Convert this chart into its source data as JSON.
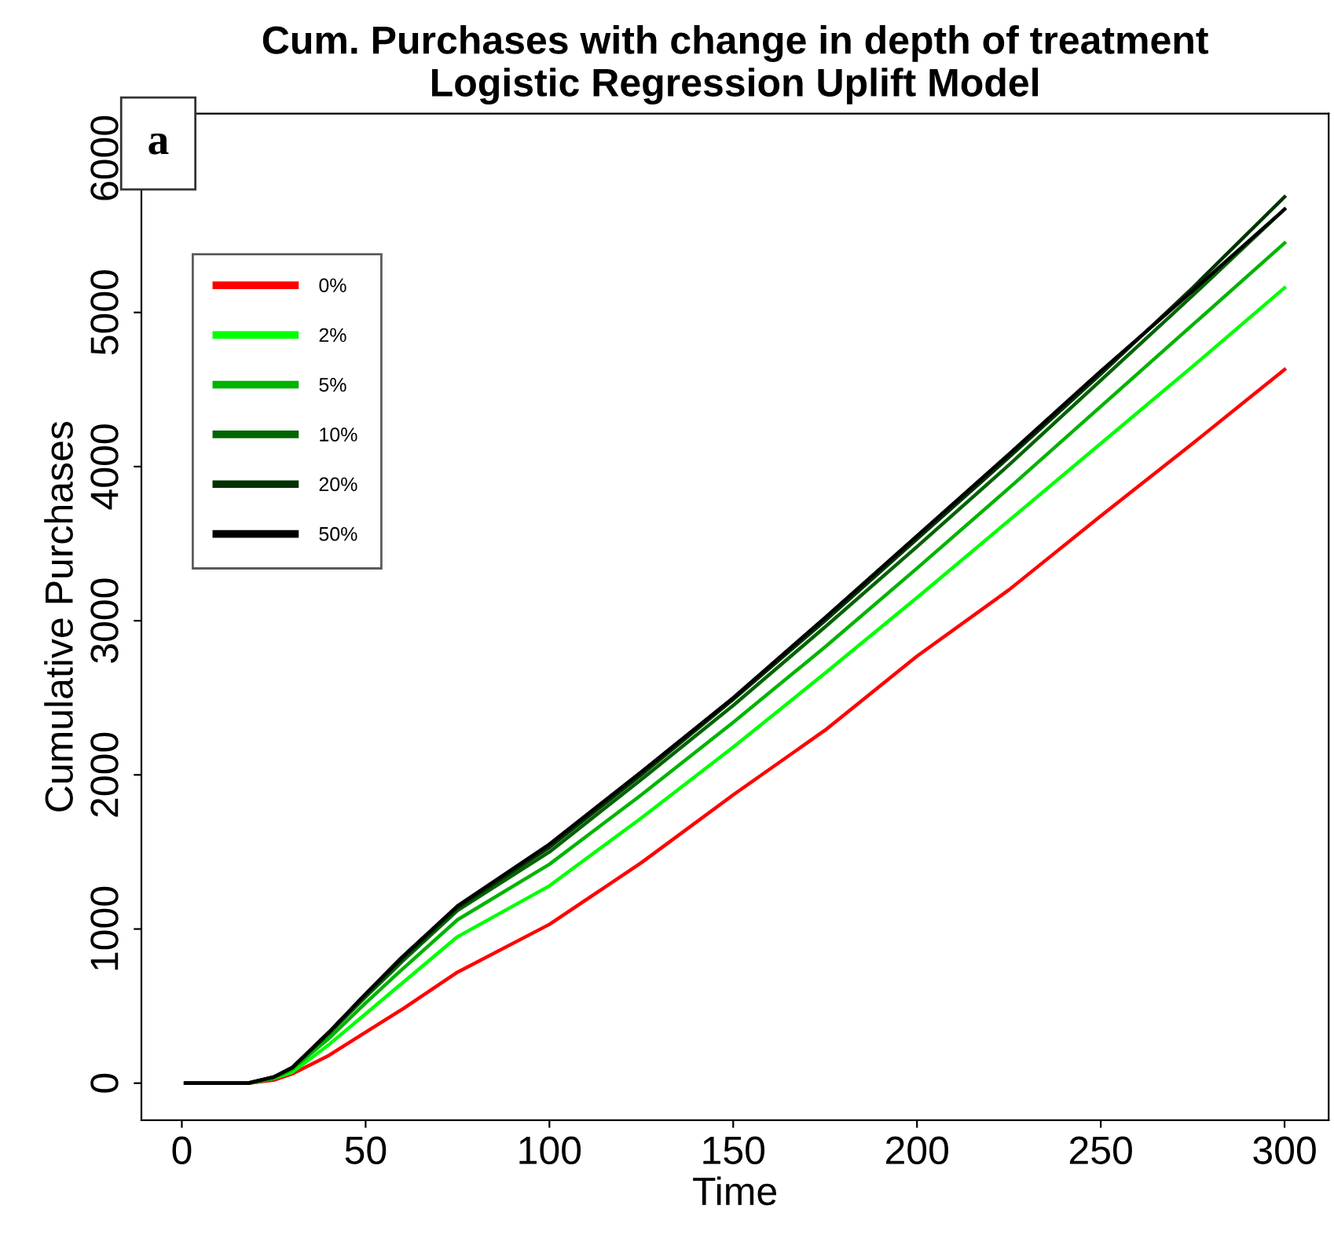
{
  "chart_data": {
    "type": "line",
    "title": "Cum. Purchases with change in depth of treatment\nLogistic Regression Uplift Model",
    "xlabel": "Time",
    "ylabel": "Cumulative Purchases",
    "annotations": [
      "a"
    ],
    "x": [
      1,
      18,
      25,
      30,
      40,
      50,
      60,
      75,
      100,
      125,
      150,
      175,
      200,
      225,
      250,
      275,
      300
    ],
    "series": [
      {
        "name": "0%",
        "color": "#ff0000",
        "values": [
          0,
          0,
          20,
          60,
          180,
          330,
          480,
          720,
          1030,
          1430,
          1870,
          2290,
          2770,
          3200,
          3680,
          4150,
          4630
        ]
      },
      {
        "name": "2%",
        "color": "#00ff00",
        "values": [
          0,
          0,
          30,
          70,
          250,
          450,
          650,
          950,
          1280,
          1720,
          2180,
          2660,
          3150,
          3650,
          4150,
          4650,
          5160
        ]
      },
      {
        "name": "5%",
        "color": "#00b400",
        "values": [
          0,
          0,
          30,
          90,
          290,
          520,
          740,
          1060,
          1420,
          1870,
          2340,
          2830,
          3340,
          3860,
          4390,
          4920,
          5450
        ]
      },
      {
        "name": "10%",
        "color": "#006400",
        "values": [
          0,
          0,
          40,
          100,
          320,
          560,
          790,
          1120,
          1500,
          1970,
          2450,
          2960,
          3480,
          4010,
          4560,
          5110,
          5670
        ]
      },
      {
        "name": "20%",
        "color": "#003300",
        "values": [
          0,
          0,
          40,
          100,
          330,
          575,
          810,
          1140,
          1530,
          2000,
          2490,
          3000,
          3530,
          4060,
          4600,
          5160,
          5750
        ]
      },
      {
        "name": "50%",
        "color": "#000000",
        "values": [
          0,
          0,
          40,
          100,
          330,
          580,
          820,
          1150,
          1550,
          2020,
          2500,
          3020,
          3550,
          4080,
          4620,
          5140,
          5670
        ]
      }
    ],
    "xlim": [
      -11,
      312
    ],
    "ylim": [
      -240,
      6290
    ],
    "xticks": [
      0,
      50,
      100,
      150,
      200,
      250,
      300
    ],
    "yticks": [
      0,
      1000,
      2000,
      3000,
      4000,
      5000,
      6000
    ],
    "legend": "top left",
    "grid": false,
    "marker": "none",
    "line_style": "solid"
  }
}
